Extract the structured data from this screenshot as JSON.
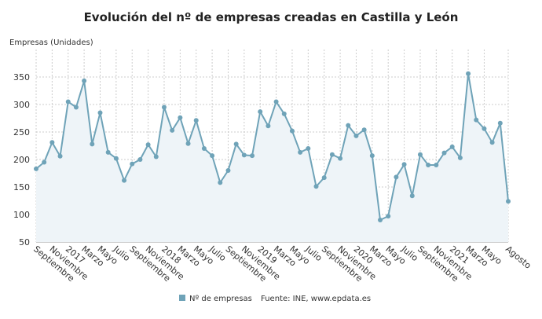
{
  "chart_data": {
    "type": "line",
    "title": "Evolución del nº de empresas creadas en Castilla y León",
    "y_label": "Empresas (Unidades)",
    "source": "Fuente: INE, www.epdata.es",
    "categories": [
      "Septiembre",
      null,
      "Noviembre",
      null,
      "2017",
      null,
      "Marzo",
      null,
      "Mayo",
      null,
      "Julio",
      null,
      "Septiembre",
      null,
      "Noviembre",
      null,
      "2018",
      null,
      "Marzo",
      null,
      "Mayo",
      null,
      "Julio",
      null,
      "Septiembre",
      null,
      "Noviembre",
      null,
      "2019",
      null,
      "Marzo",
      null,
      "Mayo",
      null,
      "Julio",
      null,
      "Septiembre",
      null,
      "Noviembre",
      null,
      "2020",
      null,
      "Marzo",
      null,
      "Mayo",
      null,
      "Julio",
      null,
      "Septiembre",
      null,
      "Noviembre",
      null,
      "2021",
      null,
      "Marzo",
      null,
      "Mayo",
      null,
      null,
      "Agosto"
    ],
    "series": [
      {
        "name": "Nº de empresas",
        "color": "#6fa3b8",
        "values": [
          183,
          195,
          231,
          206,
          305,
          295,
          343,
          228,
          285,
          213,
          202,
          162,
          192,
          200,
          227,
          205,
          295,
          253,
          276,
          229,
          271,
          220,
          207,
          158,
          180,
          228,
          208,
          207,
          287,
          261,
          305,
          283,
          252,
          213,
          220,
          151,
          167,
          209,
          202,
          262,
          243,
          254,
          207,
          90,
          97,
          168,
          191,
          134,
          209,
          190,
          190,
          212,
          223,
          203,
          356,
          272,
          256,
          231,
          266,
          124
        ]
      }
    ],
    "ylim": [
      50,
      400
    ],
    "yticks": [
      50,
      100,
      150,
      200,
      250,
      300,
      350
    ],
    "grid": true
  }
}
